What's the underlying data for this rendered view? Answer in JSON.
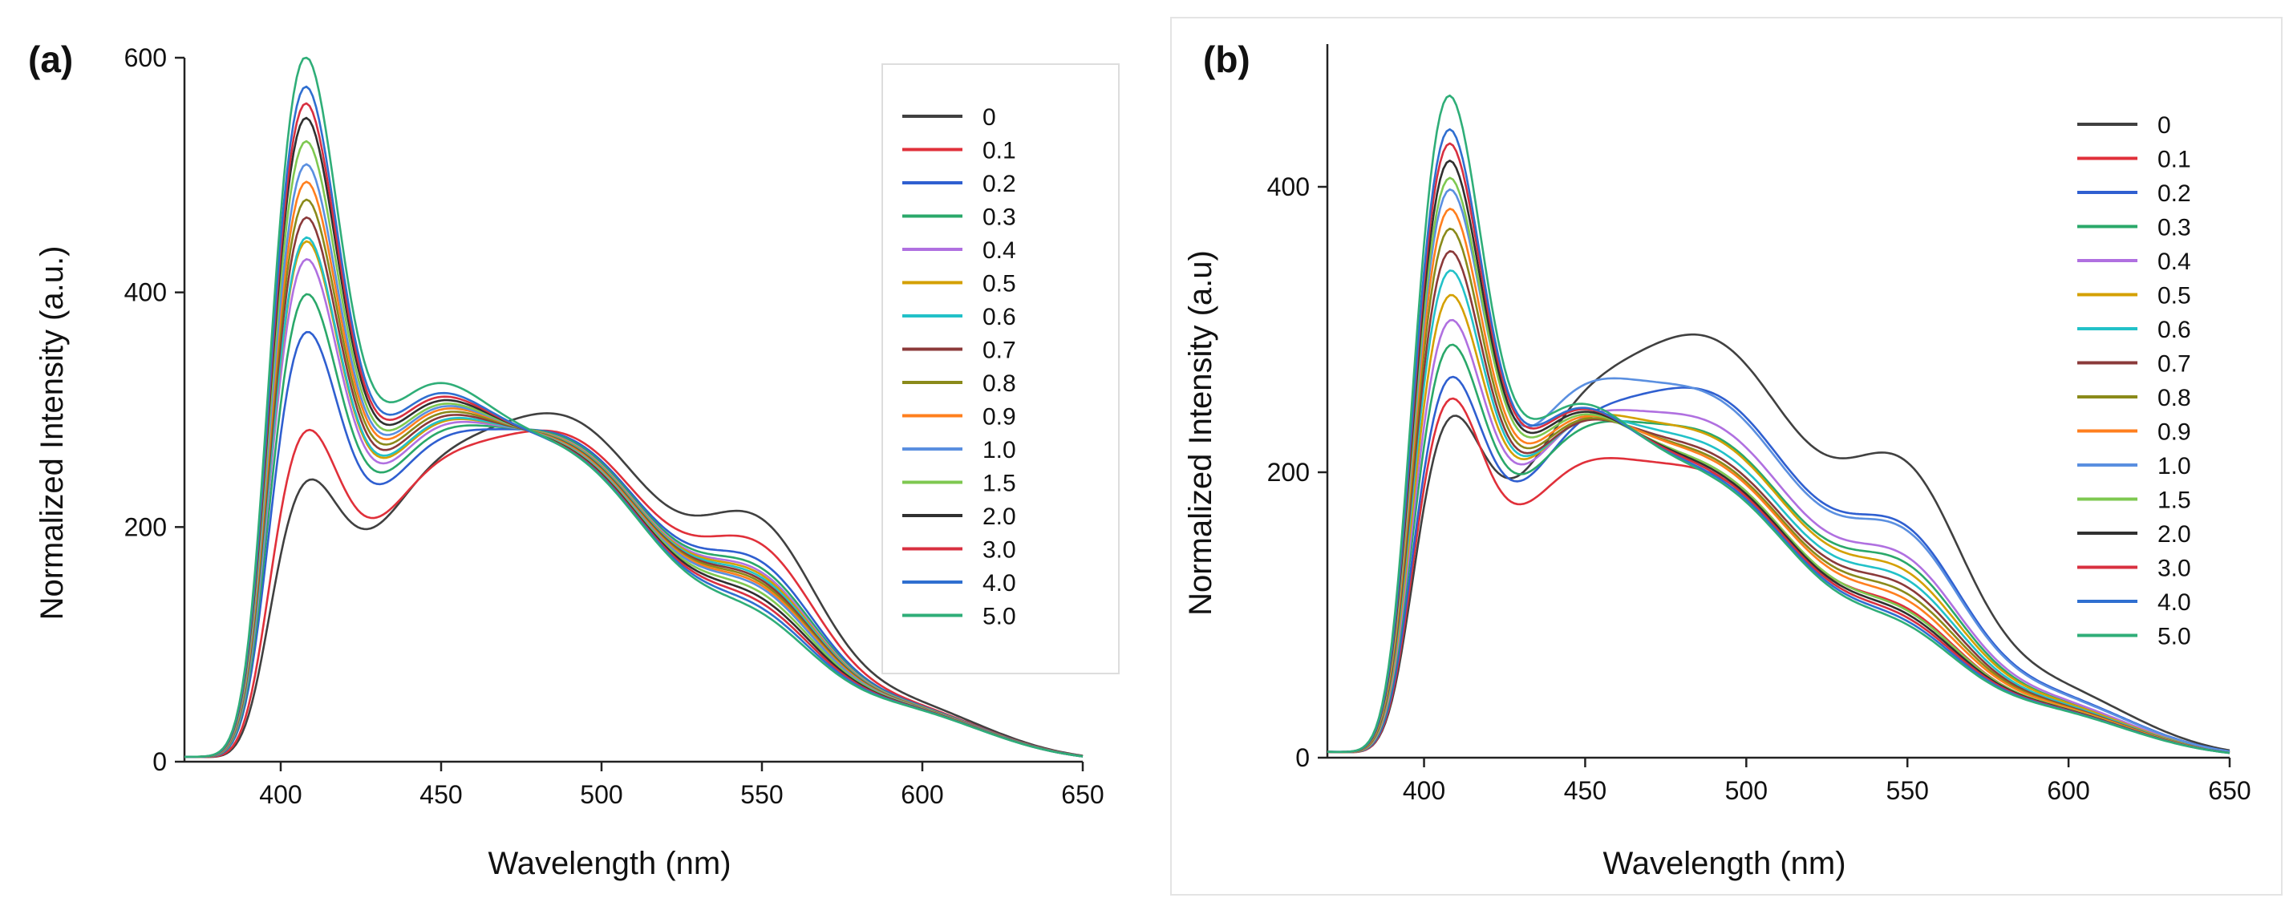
{
  "chart_data": [
    {
      "panel_label": "(a)",
      "type": "line",
      "xlabel": "Wavelength (nm)",
      "ylabel": "Normalized Intensity (a.u.)",
      "xlim": [
        370,
        650
      ],
      "ylim": [
        0,
        600
      ],
      "xticks": [
        "400",
        "450",
        "500",
        "550",
        "600",
        "650"
      ],
      "yticks": [
        "0",
        "200",
        "400",
        "600"
      ],
      "legend_position": "top-right",
      "series": [
        {
          "name": "0",
          "color": "#404040",
          "p1": 200,
          "p2": 282,
          "p3": 140,
          "t1": 145
        },
        {
          "name": "0.1",
          "color": "#e0303a",
          "p1": 245,
          "p2": 266,
          "p3": 122,
          "t1": 150
        },
        {
          "name": "0.2",
          "color": "#2f5fd0",
          "p1": 328,
          "p2": 262,
          "p3": 108,
          "t1": 172
        },
        {
          "name": "0.3",
          "color": "#2aa86a",
          "p1": 360,
          "p2": 260,
          "p3": 103,
          "t1": 180
        },
        {
          "name": "0.4",
          "color": "#b070e0",
          "p1": 390,
          "p2": 258,
          "p3": 100,
          "t1": 186
        },
        {
          "name": "0.5",
          "color": "#d4a000",
          "p1": 405,
          "p2": 257,
          "p3": 98,
          "t1": 190
        },
        {
          "name": "0.6",
          "color": "#22c1c8",
          "p1": 408,
          "p2": 256,
          "p3": 96,
          "t1": 192
        },
        {
          "name": "0.7",
          "color": "#8b3a3a",
          "p1": 425,
          "p2": 255,
          "p3": 94,
          "t1": 196
        },
        {
          "name": "0.8",
          "color": "#8a8a1a",
          "p1": 440,
          "p2": 254,
          "p3": 92,
          "t1": 200
        },
        {
          "name": "0.9",
          "color": "#ff7f1e",
          "p1": 455,
          "p2": 253,
          "p3": 90,
          "t1": 204
        },
        {
          "name": "1.0",
          "color": "#5a8fe0",
          "p1": 470,
          "p2": 252,
          "p3": 88,
          "t1": 207
        },
        {
          "name": "1.5",
          "color": "#7ec850",
          "p1": 490,
          "p2": 251,
          "p3": 84,
          "t1": 210
        },
        {
          "name": "2.0",
          "color": "#303030",
          "p1": 510,
          "p2": 250,
          "p3": 80,
          "t1": 214
        },
        {
          "name": "3.0",
          "color": "#d83040",
          "p1": 522,
          "p2": 249,
          "p3": 76,
          "t1": 218
        },
        {
          "name": "4.0",
          "color": "#2f6fd0",
          "p1": 536,
          "p2": 248,
          "p3": 72,
          "t1": 222
        },
        {
          "name": "5.0",
          "color": "#2fae78",
          "p1": 560,
          "p2": 247,
          "p3": 68,
          "t1": 232
        }
      ]
    },
    {
      "panel_label": "(b)",
      "type": "line",
      "xlabel": "Wavelength (nm)",
      "ylabel": "Normalized Intensity (a.u)",
      "xlim": [
        370,
        650
      ],
      "ylim": [
        0,
        500
      ],
      "xticks": [
        "400",
        "450",
        "500",
        "550",
        "600",
        "650"
      ],
      "yticks": [
        "0",
        "200",
        "400"
      ],
      "legend_position": "top-right",
      "series": [
        {
          "name": "0",
          "color": "#404040",
          "p1": 200,
          "p2": 282,
          "p3": 140,
          "t1": 142
        },
        {
          "name": "0.1",
          "color": "#e0303a",
          "p1": 220,
          "p2": 188,
          "p3": 60,
          "t1": 134
        },
        {
          "name": "0.2",
          "color": "#2f5fd0",
          "p1": 232,
          "p2": 244,
          "p3": 104,
          "t1": 140
        },
        {
          "name": "0.3",
          "color": "#2aa86a",
          "p1": 255,
          "p2": 214,
          "p3": 85,
          "t1": 148
        },
        {
          "name": "0.4",
          "color": "#b070e0",
          "p1": 272,
          "p2": 222,
          "p3": 88,
          "t1": 152
        },
        {
          "name": "0.5",
          "color": "#d4a000",
          "p1": 290,
          "p2": 212,
          "p3": 80,
          "t1": 156
        },
        {
          "name": "0.6",
          "color": "#22c1c8",
          "p1": 308,
          "p2": 205,
          "p3": 76,
          "t1": 158
        },
        {
          "name": "0.7",
          "color": "#8b3a3a",
          "p1": 322,
          "p2": 200,
          "p3": 72,
          "t1": 160
        },
        {
          "name": "0.8",
          "color": "#8a8a1a",
          "p1": 338,
          "p2": 197,
          "p3": 68,
          "t1": 163
        },
        {
          "name": "0.9",
          "color": "#ff7f1e",
          "p1": 352,
          "p2": 195,
          "p3": 64,
          "t1": 166
        },
        {
          "name": "1.0",
          "color": "#5a8fe0",
          "p1": 364,
          "p2": 240,
          "p3": 102,
          "t1": 168
        },
        {
          "name": "1.5",
          "color": "#7ec850",
          "p1": 374,
          "p2": 190,
          "p3": 58,
          "t1": 170
        },
        {
          "name": "2.0",
          "color": "#303030",
          "p1": 386,
          "p2": 188,
          "p3": 56,
          "t1": 173
        },
        {
          "name": "3.0",
          "color": "#d83040",
          "p1": 398,
          "p2": 186,
          "p3": 54,
          "t1": 176
        },
        {
          "name": "4.0",
          "color": "#2f6fd0",
          "p1": 408,
          "p2": 184,
          "p3": 52,
          "t1": 178
        },
        {
          "name": "5.0",
          "color": "#2fae78",
          "p1": 432,
          "p2": 182,
          "p3": 50,
          "t1": 182
        }
      ]
    }
  ]
}
